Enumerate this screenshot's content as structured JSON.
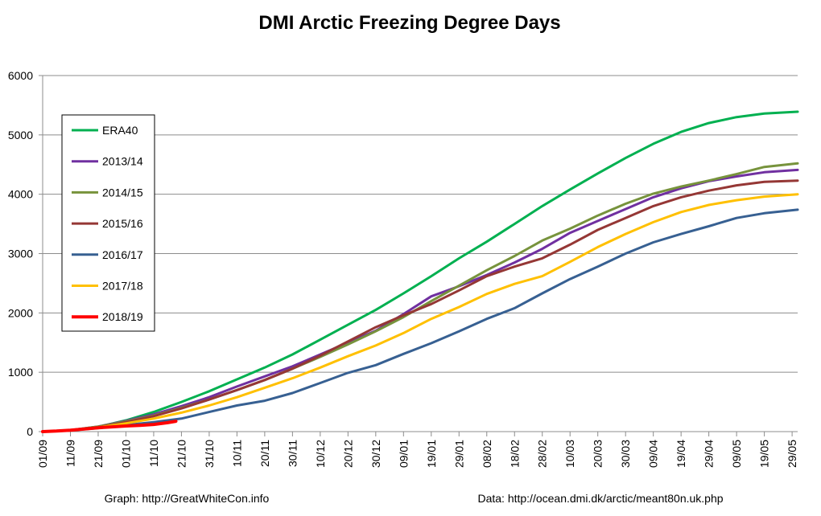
{
  "chart_data": {
    "type": "line",
    "title": "DMI Arctic Freezing Degree Days",
    "xlabel": "",
    "ylabel": "",
    "ylim": [
      0,
      6000
    ],
    "yticks": [
      "0",
      "1000",
      "2000",
      "3000",
      "4000",
      "5000",
      "6000"
    ],
    "x_tick_labels": [
      "01/09",
      "11/09",
      "21/09",
      "01/10",
      "11/10",
      "21/10",
      "31/10",
      "10/11",
      "20/11",
      "30/11",
      "10/12",
      "20/12",
      "30/12",
      "09/01",
      "19/01",
      "29/01",
      "08/02",
      "18/02",
      "28/02",
      "10/03",
      "20/03",
      "30/03",
      "09/04",
      "19/04",
      "29/04",
      "09/05",
      "19/05",
      "29/05"
    ],
    "x_tick_days": [
      0,
      10,
      20,
      30,
      40,
      50,
      60,
      70,
      80,
      90,
      100,
      110,
      120,
      130,
      140,
      150,
      160,
      170,
      180,
      190,
      200,
      210,
      220,
      230,
      240,
      250,
      260,
      270
    ],
    "x_range_days": [
      0,
      272
    ],
    "x_unit": "days since 01/09",
    "grid": {
      "horizontal": true,
      "vertical": false
    },
    "legend_position": "left",
    "series": [
      {
        "name": "ERA40",
        "color": "#00b050",
        "points": [
          [
            0,
            0
          ],
          [
            10,
            20
          ],
          [
            20,
            80
          ],
          [
            30,
            190
          ],
          [
            40,
            330
          ],
          [
            50,
            500
          ],
          [
            60,
            680
          ],
          [
            70,
            880
          ],
          [
            80,
            1080
          ],
          [
            90,
            1300
          ],
          [
            100,
            1550
          ],
          [
            110,
            1800
          ],
          [
            120,
            2050
          ],
          [
            130,
            2330
          ],
          [
            140,
            2620
          ],
          [
            150,
            2920
          ],
          [
            160,
            3200
          ],
          [
            170,
            3500
          ],
          [
            180,
            3800
          ],
          [
            190,
            4080
          ],
          [
            200,
            4350
          ],
          [
            210,
            4610
          ],
          [
            220,
            4850
          ],
          [
            230,
            5050
          ],
          [
            240,
            5200
          ],
          [
            250,
            5300
          ],
          [
            260,
            5360
          ],
          [
            272,
            5390
          ]
        ]
      },
      {
        "name": "2013/14",
        "color": "#7030a0",
        "points": [
          [
            0,
            0
          ],
          [
            10,
            25
          ],
          [
            20,
            85
          ],
          [
            30,
            180
          ],
          [
            40,
            290
          ],
          [
            50,
            430
          ],
          [
            60,
            580
          ],
          [
            70,
            760
          ],
          [
            80,
            930
          ],
          [
            90,
            1100
          ],
          [
            100,
            1300
          ],
          [
            110,
            1500
          ],
          [
            120,
            1700
          ],
          [
            130,
            1980
          ],
          [
            140,
            2280
          ],
          [
            150,
            2450
          ],
          [
            160,
            2640
          ],
          [
            170,
            2850
          ],
          [
            180,
            3080
          ],
          [
            190,
            3350
          ],
          [
            200,
            3550
          ],
          [
            210,
            3750
          ],
          [
            220,
            3950
          ],
          [
            230,
            4100
          ],
          [
            240,
            4220
          ],
          [
            250,
            4300
          ],
          [
            260,
            4370
          ],
          [
            272,
            4410
          ]
        ]
      },
      {
        "name": "2014/15",
        "color": "#77933c",
        "points": [
          [
            0,
            0
          ],
          [
            10,
            25
          ],
          [
            20,
            85
          ],
          [
            30,
            170
          ],
          [
            40,
            270
          ],
          [
            50,
            400
          ],
          [
            60,
            540
          ],
          [
            70,
            700
          ],
          [
            80,
            870
          ],
          [
            90,
            1060
          ],
          [
            100,
            1260
          ],
          [
            110,
            1470
          ],
          [
            120,
            1690
          ],
          [
            130,
            1930
          ],
          [
            140,
            2200
          ],
          [
            150,
            2460
          ],
          [
            160,
            2720
          ],
          [
            170,
            2960
          ],
          [
            180,
            3220
          ],
          [
            190,
            3420
          ],
          [
            200,
            3640
          ],
          [
            210,
            3840
          ],
          [
            220,
            4010
          ],
          [
            230,
            4130
          ],
          [
            240,
            4230
          ],
          [
            250,
            4340
          ],
          [
            260,
            4460
          ],
          [
            272,
            4520
          ]
        ]
      },
      {
        "name": "2015/16",
        "color": "#953735",
        "points": [
          [
            0,
            0
          ],
          [
            10,
            20
          ],
          [
            20,
            75
          ],
          [
            30,
            160
          ],
          [
            40,
            260
          ],
          [
            50,
            390
          ],
          [
            60,
            540
          ],
          [
            70,
            700
          ],
          [
            80,
            870
          ],
          [
            90,
            1060
          ],
          [
            100,
            1280
          ],
          [
            110,
            1520
          ],
          [
            120,
            1760
          ],
          [
            130,
            1960
          ],
          [
            140,
            2150
          ],
          [
            150,
            2380
          ],
          [
            160,
            2620
          ],
          [
            170,
            2780
          ],
          [
            180,
            2920
          ],
          [
            190,
            3150
          ],
          [
            200,
            3400
          ],
          [
            210,
            3600
          ],
          [
            220,
            3800
          ],
          [
            230,
            3950
          ],
          [
            240,
            4060
          ],
          [
            250,
            4150
          ],
          [
            260,
            4210
          ],
          [
            272,
            4230
          ]
        ]
      },
      {
        "name": "2016/17",
        "color": "#376092",
        "points": [
          [
            0,
            0
          ],
          [
            10,
            20
          ],
          [
            20,
            60
          ],
          [
            30,
            110
          ],
          [
            40,
            160
          ],
          [
            50,
            220
          ],
          [
            60,
            330
          ],
          [
            70,
            440
          ],
          [
            80,
            520
          ],
          [
            90,
            650
          ],
          [
            100,
            820
          ],
          [
            110,
            990
          ],
          [
            120,
            1120
          ],
          [
            130,
            1310
          ],
          [
            140,
            1490
          ],
          [
            150,
            1690
          ],
          [
            160,
            1900
          ],
          [
            170,
            2080
          ],
          [
            180,
            2330
          ],
          [
            190,
            2570
          ],
          [
            200,
            2780
          ],
          [
            210,
            3000
          ],
          [
            220,
            3190
          ],
          [
            230,
            3330
          ],
          [
            240,
            3460
          ],
          [
            250,
            3600
          ],
          [
            260,
            3680
          ],
          [
            272,
            3740
          ]
        ]
      },
      {
        "name": "2017/18",
        "color": "#ffc000",
        "points": [
          [
            0,
            0
          ],
          [
            10,
            20
          ],
          [
            20,
            70
          ],
          [
            30,
            140
          ],
          [
            40,
            220
          ],
          [
            50,
            320
          ],
          [
            60,
            440
          ],
          [
            70,
            580
          ],
          [
            80,
            740
          ],
          [
            90,
            900
          ],
          [
            100,
            1080
          ],
          [
            110,
            1270
          ],
          [
            120,
            1450
          ],
          [
            130,
            1660
          ],
          [
            140,
            1900
          ],
          [
            150,
            2100
          ],
          [
            160,
            2320
          ],
          [
            170,
            2490
          ],
          [
            180,
            2620
          ],
          [
            190,
            2860
          ],
          [
            200,
            3110
          ],
          [
            210,
            3330
          ],
          [
            220,
            3530
          ],
          [
            230,
            3700
          ],
          [
            240,
            3820
          ],
          [
            250,
            3900
          ],
          [
            260,
            3960
          ],
          [
            272,
            4000
          ]
        ]
      },
      {
        "name": "2018/19",
        "color": "#ff0000",
        "points": [
          [
            0,
            0
          ],
          [
            5,
            10
          ],
          [
            10,
            25
          ],
          [
            15,
            45
          ],
          [
            20,
            65
          ],
          [
            25,
            80
          ],
          [
            30,
            95
          ],
          [
            35,
            105
          ],
          [
            40,
            120
          ],
          [
            45,
            150
          ],
          [
            48,
            175
          ]
        ]
      }
    ],
    "annotations": [
      "Graph: http://GreatWhiteCon.info",
      "Data: http://ocean.dmi.dk/arctic/meant80n.uk.php"
    ]
  }
}
